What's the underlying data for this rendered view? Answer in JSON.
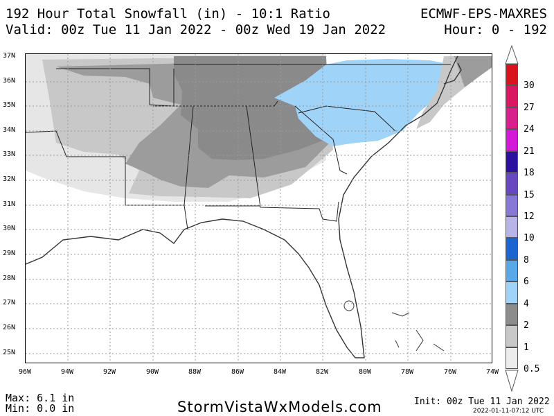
{
  "header": {
    "title": "192 Hour Total Snowfall (in) - 10:1 Ratio",
    "model": "ECMWF-EPS-MAXRES",
    "valid": "Valid: 00z Tue 11 Jan 2022 - 00z Wed 19 Jan 2022",
    "hour": "Hour: 0 - 192"
  },
  "map": {
    "lat_labels": [
      "37N",
      "36N",
      "35N",
      "34N",
      "33N",
      "32N",
      "31N",
      "30N",
      "29N",
      "28N",
      "27N",
      "26N",
      "25N"
    ],
    "lon_labels": [
      "96W",
      "94W",
      "92W",
      "90W",
      "88W",
      "86W",
      "84W",
      "82W",
      "80W",
      "78W",
      "76W",
      "74W"
    ],
    "colors": {
      "light": "#e6e6e6",
      "lgray": "#c8c8c8",
      "mgray": "#9c9c9c",
      "dgray": "#8a8a8a",
      "blue": "#9fd3f7",
      "coast": "#333333"
    }
  },
  "colorbar": {
    "levels": [
      {
        "label": "0.5",
        "color": "#ececec"
      },
      {
        "label": "1",
        "color": "#c8c8c8"
      },
      {
        "label": "2",
        "color": "#8c8c8c"
      },
      {
        "label": "4",
        "color": "#9fd3f7"
      },
      {
        "label": "6",
        "color": "#5aa8e8"
      },
      {
        "label": "8",
        "color": "#1c64d0"
      },
      {
        "label": "10",
        "color": "#b8b4e8"
      },
      {
        "label": "12",
        "color": "#8878d6"
      },
      {
        "label": "15",
        "color": "#6848c0"
      },
      {
        "label": "18",
        "color": "#2c10a0"
      },
      {
        "label": "21",
        "color": "#d418d8"
      },
      {
        "label": "24",
        "color": "#d8208c"
      },
      {
        "label": "27",
        "color": "#d81860"
      },
      {
        "label": "30",
        "color": "#d8141c"
      }
    ]
  },
  "footer": {
    "max": "Max: 6.1 in",
    "min": "Min: 0.0 in",
    "site": "StormVistaWxModels.com",
    "init": "Init: 00z Tue 11 Jan 2022",
    "timestamp": "2022-01-11-07:12 UTC"
  }
}
